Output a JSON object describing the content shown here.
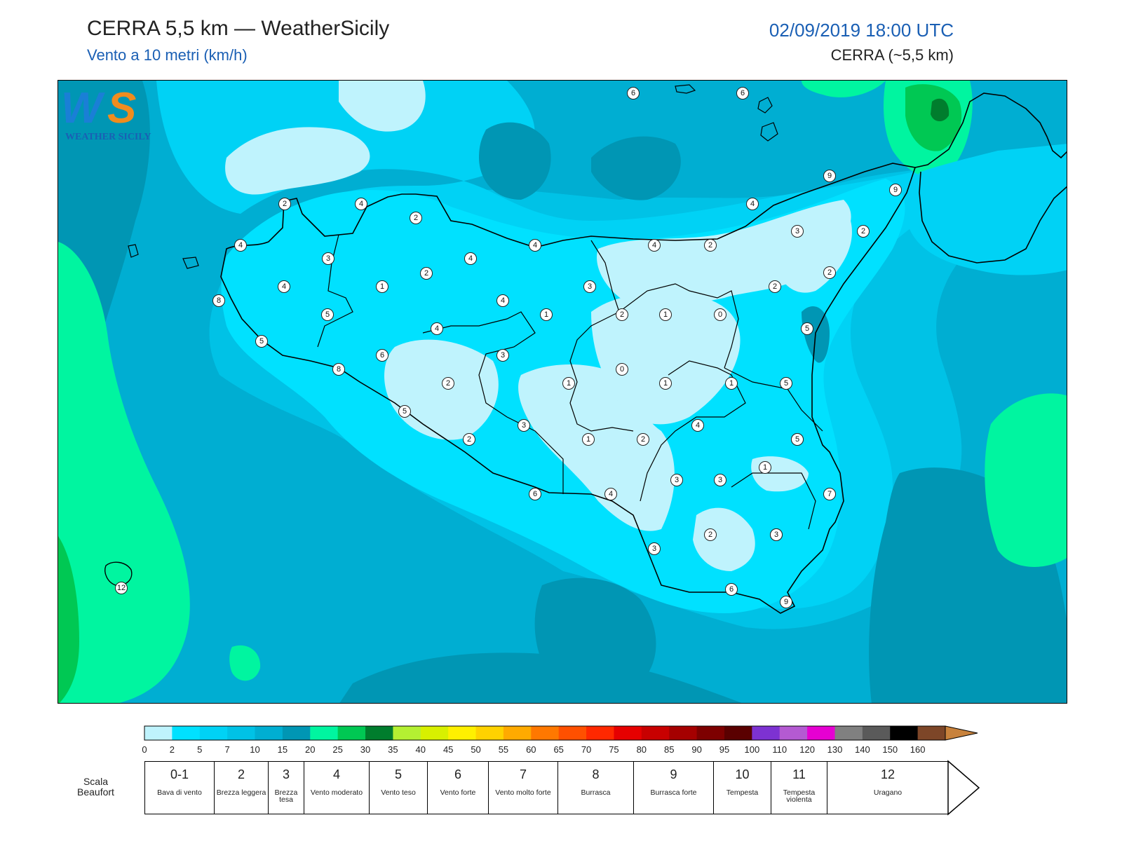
{
  "header": {
    "title": "CERRA 5,5 km — WeatherSicily",
    "subtitle": "Vento a 10 metri (km/h)",
    "datetime": "02/09/2019 18:00 UTC",
    "model": "CERRA (~5,5 km)"
  },
  "logo": {
    "text": "WEATHER SICILY",
    "mark": "WS"
  },
  "colorbar": {
    "ticks": [
      "0",
      "2",
      "5",
      "7",
      "10",
      "15",
      "20",
      "25",
      "30",
      "35",
      "40",
      "45",
      "50",
      "55",
      "60",
      "65",
      "70",
      "75",
      "80",
      "85",
      "90",
      "95",
      "100",
      "110",
      "120",
      "130",
      "140",
      "150",
      "160"
    ],
    "colors": [
      "#bff3fd",
      "#00e1ff",
      "#00d2f5",
      "#00c2e6",
      "#00aed2",
      "#0096b4",
      "#00f5a0",
      "#00c853",
      "#007d2d",
      "#b4f032",
      "#d8f000",
      "#fff000",
      "#ffd200",
      "#ffaa00",
      "#ff7800",
      "#ff5000",
      "#ff2800",
      "#e60000",
      "#c80000",
      "#a50000",
      "#7d0000",
      "#5a0000",
      "#7d32d2",
      "#b45ad2",
      "#e600d2",
      "#808080",
      "#5a5a5a",
      "#000000",
      "#7d4628",
      "#c8823c"
    ]
  },
  "beaufort": {
    "title_line1": "Scala",
    "title_line2": "Beaufort",
    "cells": [
      {
        "num": "0-1",
        "desc": "Bava di vento"
      },
      {
        "num": "2",
        "desc": "Brezza leggera"
      },
      {
        "num": "3",
        "desc": "Brezza tesa"
      },
      {
        "num": "4",
        "desc": "Vento moderato"
      },
      {
        "num": "5",
        "desc": "Vento teso"
      },
      {
        "num": "6",
        "desc": "Vento forte"
      },
      {
        "num": "7",
        "desc": "Vento molto forte"
      },
      {
        "num": "8",
        "desc": "Burrasca"
      },
      {
        "num": "9",
        "desc": "Burrasca forte"
      },
      {
        "num": "10",
        "desc": "Tempesta"
      },
      {
        "num": "11",
        "desc": "Tempesta violenta"
      },
      {
        "num": "12",
        "desc": "Uragano"
      }
    ]
  },
  "map_values": [
    "6",
    "6",
    "9",
    "9",
    "2",
    "4",
    "2",
    "4",
    "4",
    "4",
    "3",
    "2",
    "4",
    "4",
    "2",
    "3",
    "2",
    "1",
    "2",
    "4",
    "3",
    "2",
    "8",
    "5",
    "5",
    "1",
    "4",
    "2",
    "1",
    "0",
    "5",
    "5",
    "4",
    "3",
    "6",
    "8",
    "2",
    "1",
    "0",
    "1",
    "1",
    "5",
    "5",
    "3",
    "2",
    "1",
    "4",
    "2",
    "3",
    "5",
    "1",
    "3",
    "3",
    "7",
    "6",
    "4",
    "2",
    "3",
    "3",
    "6",
    "9",
    "12"
  ]
}
